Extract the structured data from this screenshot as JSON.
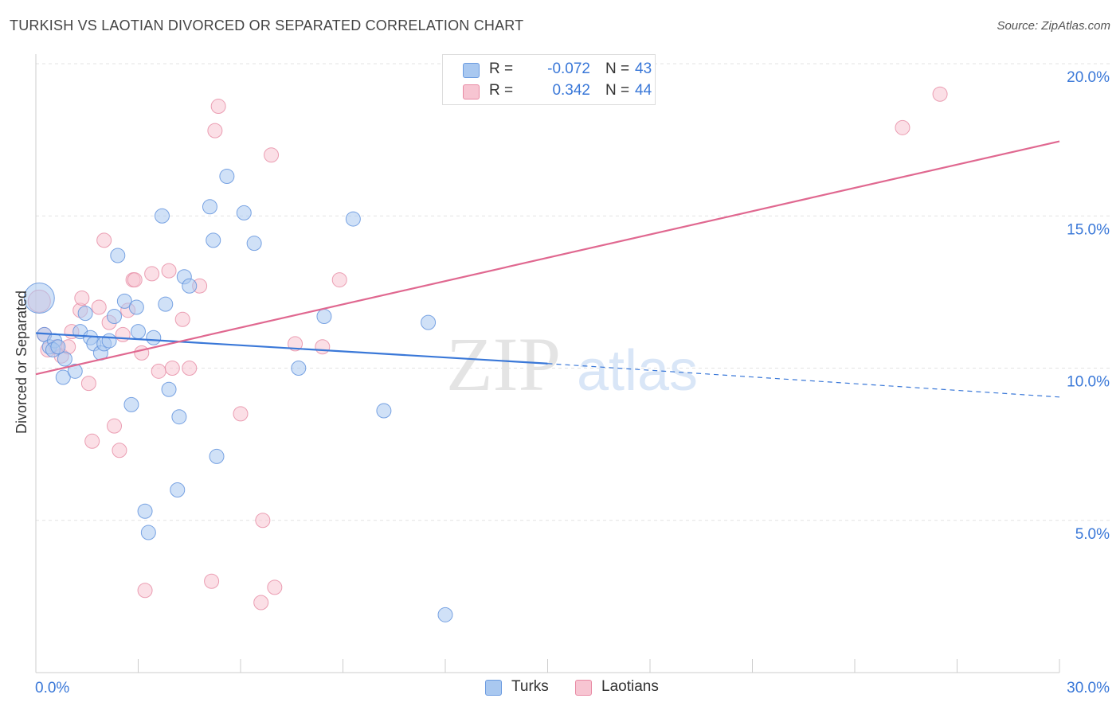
{
  "title": "TURKISH VS LAOTIAN DIVORCED OR SEPARATED CORRELATION CHART",
  "source": "Source: ZipAtlas.com",
  "watermark": {
    "zip": "ZIP",
    "atlas": "atlas"
  },
  "legend": {
    "rows": [
      {
        "r_label": "R =",
        "r_value": "-0.072",
        "n_label": "N =",
        "n_value": "43",
        "color": "#a9c8f0",
        "border": "#6b9be0"
      },
      {
        "r_label": "R =",
        "r_value": "0.342",
        "n_label": "N =",
        "n_value": "44",
        "color": "#f7c5d2",
        "border": "#e88aa4"
      }
    ]
  },
  "bottom_legend": [
    {
      "label": "Turks",
      "color": "#a9c8f0",
      "border": "#6b9be0"
    },
    {
      "label": "Laotians",
      "color": "#f7c5d2",
      "border": "#e88aa4"
    }
  ],
  "colors": {
    "turks_fill": "#a9c8f0",
    "turks_stroke": "#5b8fdc",
    "turks_line": "#3a78d8",
    "laotians_fill": "#f7c5d2",
    "laotians_stroke": "#e68aa3",
    "laotians_line": "#e06890",
    "axis_label": "#3a78d8",
    "grid": "#e3e3e3"
  },
  "chart_data": {
    "type": "scatter",
    "title": "TURKISH VS LAOTIAN DIVORCED OR SEPARATED CORRELATION CHART",
    "xlabel": "",
    "ylabel": "Divorced or Separated",
    "xlim": [
      0,
      30
    ],
    "ylim": [
      0,
      20
    ],
    "x_tick_labels": [
      {
        "value": 0,
        "label": "0.0%"
      },
      {
        "value": 30,
        "label": "30.0%"
      }
    ],
    "y_tick_labels": [
      {
        "value": 5,
        "label": "5.0%"
      },
      {
        "value": 10,
        "label": "10.0%"
      },
      {
        "value": 15,
        "label": "15.0%"
      },
      {
        "value": 20,
        "label": "20.0%"
      }
    ],
    "series": [
      {
        "name": "Turks",
        "r": -0.072,
        "n": 43,
        "points": [
          [
            0.1,
            12.3,
            3
          ],
          [
            0.25,
            11.1,
            1
          ],
          [
            0.4,
            10.7,
            1
          ],
          [
            0.55,
            10.9,
            1
          ],
          [
            0.85,
            10.3,
            1
          ],
          [
            0.5,
            10.6,
            1
          ],
          [
            0.65,
            10.7,
            1
          ],
          [
            0.8,
            9.7,
            1
          ],
          [
            1.15,
            9.9,
            1
          ],
          [
            1.3,
            11.2,
            1
          ],
          [
            1.45,
            11.8,
            1
          ],
          [
            1.6,
            11.0,
            1
          ],
          [
            1.7,
            10.8,
            1
          ],
          [
            1.9,
            10.5,
            1
          ],
          [
            2.0,
            10.8,
            1
          ],
          [
            2.15,
            10.9,
            1
          ],
          [
            2.3,
            11.7,
            1
          ],
          [
            2.4,
            13.7,
            1
          ],
          [
            2.6,
            12.2,
            1
          ],
          [
            2.8,
            8.8,
            1
          ],
          [
            2.95,
            12.0,
            1
          ],
          [
            3.0,
            11.2,
            1
          ],
          [
            3.2,
            5.3,
            1
          ],
          [
            3.3,
            4.6,
            1
          ],
          [
            3.45,
            11.0,
            1
          ],
          [
            3.7,
            15.0,
            1
          ],
          [
            3.8,
            12.1,
            1
          ],
          [
            3.9,
            9.3,
            1
          ],
          [
            4.15,
            6.0,
            1
          ],
          [
            4.2,
            8.4,
            1
          ],
          [
            4.35,
            13.0,
            1
          ],
          [
            4.5,
            12.7,
            1
          ],
          [
            5.1,
            15.3,
            1
          ],
          [
            5.2,
            14.2,
            1
          ],
          [
            5.3,
            7.1,
            1
          ],
          [
            5.6,
            16.3,
            1
          ],
          [
            6.1,
            15.1,
            1
          ],
          [
            6.4,
            14.1,
            1
          ],
          [
            7.7,
            10.0,
            1
          ],
          [
            8.45,
            11.7,
            1
          ],
          [
            9.3,
            14.9,
            1
          ],
          [
            10.2,
            8.6,
            1
          ],
          [
            11.5,
            11.5,
            1
          ],
          [
            12.0,
            1.9,
            1
          ]
        ],
        "trendline": {
          "x0": 0,
          "y0": 11.15,
          "x1": 15.0,
          "y1": 10.15,
          "dashed_to_x": 30,
          "dashed_to_y": 9.05
        }
      },
      {
        "name": "Laotians",
        "r": 0.342,
        "n": 44,
        "points": [
          [
            0.1,
            12.2,
            2
          ],
          [
            0.25,
            11.1,
            1
          ],
          [
            0.35,
            10.6,
            1
          ],
          [
            0.6,
            10.7,
            1
          ],
          [
            0.75,
            10.4,
            1
          ],
          [
            0.95,
            10.7,
            1
          ],
          [
            1.05,
            11.2,
            1
          ],
          [
            1.3,
            11.9,
            1
          ],
          [
            1.35,
            12.3,
            1
          ],
          [
            1.55,
            9.5,
            1
          ],
          [
            1.65,
            7.6,
            1
          ],
          [
            1.85,
            12.0,
            1
          ],
          [
            2.0,
            14.2,
            1
          ],
          [
            2.15,
            11.5,
            1
          ],
          [
            2.3,
            8.1,
            1
          ],
          [
            2.45,
            7.3,
            1
          ],
          [
            2.55,
            11.1,
            1
          ],
          [
            2.7,
            11.9,
            1
          ],
          [
            2.85,
            12.9,
            1
          ],
          [
            2.9,
            12.9,
            1
          ],
          [
            3.1,
            10.5,
            1
          ],
          [
            3.2,
            2.7,
            1
          ],
          [
            3.4,
            13.1,
            1
          ],
          [
            3.6,
            9.9,
            1
          ],
          [
            3.9,
            13.2,
            1
          ],
          [
            4.0,
            10.0,
            1
          ],
          [
            4.3,
            11.6,
            1
          ],
          [
            4.5,
            10.0,
            1
          ],
          [
            4.8,
            12.7,
            1
          ],
          [
            5.15,
            3.0,
            1
          ],
          [
            5.25,
            17.8,
            1
          ],
          [
            5.35,
            18.6,
            1
          ],
          [
            6.0,
            8.5,
            1
          ],
          [
            6.6,
            2.3,
            1
          ],
          [
            6.65,
            5.0,
            1
          ],
          [
            6.9,
            17.0,
            1
          ],
          [
            7.0,
            2.8,
            1
          ],
          [
            7.6,
            10.8,
            1
          ],
          [
            8.4,
            10.7,
            1
          ],
          [
            8.9,
            12.9,
            1
          ],
          [
            25.4,
            17.9,
            1
          ],
          [
            26.5,
            19.0,
            1
          ]
        ],
        "trendline": {
          "x0": 0,
          "y0": 9.8,
          "x1": 30.0,
          "y1": 17.45
        }
      }
    ]
  }
}
